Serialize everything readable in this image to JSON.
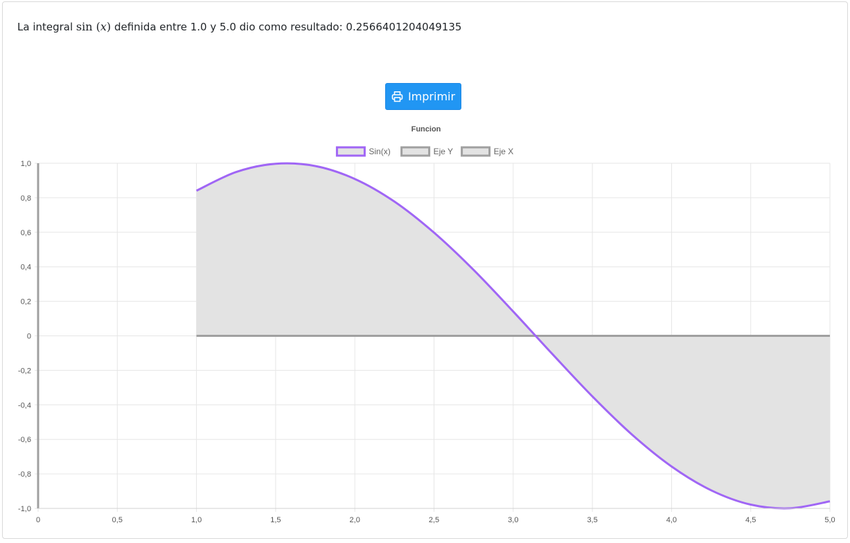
{
  "result": {
    "prefix": "La integral ",
    "func_name": "sin",
    "func_open": " (",
    "func_var": "x",
    "func_close": ")",
    "suffix": " definida entre 1.0 y 5.0 dio como resultado: 0.2566401204049135"
  },
  "print_button": {
    "label": "Imprimir",
    "icon": "printer-icon",
    "color": "#2196f3"
  },
  "chart_data": {
    "type": "line",
    "title": "Funcion",
    "legend_position": "top",
    "grid": true,
    "xlim": [
      0,
      5
    ],
    "ylim": [
      -1,
      1
    ],
    "x_ticks": [
      "0",
      "0,5",
      "1,0",
      "1,5",
      "2,0",
      "2,5",
      "3,0",
      "3,5",
      "4,0",
      "4,5",
      "5,0"
    ],
    "x_tick_values": [
      0,
      0.5,
      1.0,
      1.5,
      2.0,
      2.5,
      3.0,
      3.5,
      4.0,
      4.5,
      5.0
    ],
    "y_ticks": [
      "1,0",
      "0,8",
      "0,6",
      "0,4",
      "0,2",
      "0",
      "-0,2",
      "-0,4",
      "-0,6",
      "-0,8",
      "-1,0"
    ],
    "y_tick_values": [
      1.0,
      0.8,
      0.6,
      0.4,
      0.2,
      0,
      -0.2,
      -0.4,
      -0.6,
      -0.8,
      -1.0
    ],
    "fill_color": "#e3e3e3",
    "series": [
      {
        "name": "Sin(x)",
        "color": "#a066f5",
        "fill": true,
        "x": [
          1.0,
          1.25,
          1.5,
          1.75,
          2.0,
          2.25,
          2.5,
          2.75,
          3.0,
          3.25,
          3.5,
          3.75,
          4.0,
          4.25,
          4.5,
          4.75,
          5.0
        ],
        "y": [
          0.841,
          0.949,
          0.997,
          0.984,
          0.909,
          0.778,
          0.598,
          0.382,
          0.141,
          -0.108,
          -0.351,
          -0.572,
          -0.757,
          -0.895,
          -0.978,
          -0.999,
          -0.959
        ]
      },
      {
        "name": "Eje Y",
        "color": "#a0a0a0",
        "x": [
          0,
          0
        ],
        "y": [
          -1,
          1
        ]
      },
      {
        "name": "Eje X",
        "color": "#a0a0a0",
        "x": [
          1.0,
          5.0
        ],
        "y": [
          0,
          0
        ]
      }
    ]
  }
}
